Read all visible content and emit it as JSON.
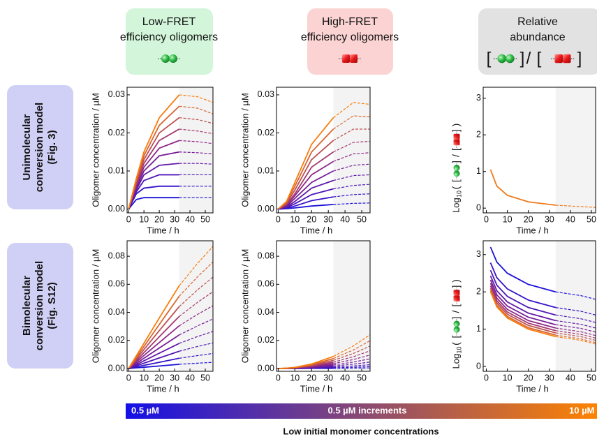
{
  "headers": [
    {
      "lines": [
        "Low-FRET",
        "efficiency oligomers"
      ]
    },
    {
      "lines": [
        "High-FRET",
        "efficiency oligomers"
      ]
    },
    {
      "lines": [
        "Relative",
        "abundance"
      ],
      "glyphs": [
        "[",
        "]",
        "/",
        "[",
        "]"
      ]
    }
  ],
  "rows": [
    {
      "lines": [
        "Unimolecular",
        "conversion model",
        "(Fig. 3)"
      ]
    },
    {
      "lines": [
        "Bimolecular",
        "conversion model",
        "(Fig. S12)"
      ]
    }
  ],
  "chart_data": [
    {
      "type": "line",
      "x_label": "Time / h",
      "y_label": "Oligomer concentration / µM",
      "shade_from": 33,
      "xlim": [
        -1,
        55
      ],
      "ylim": [
        -0.001,
        0.032
      ],
      "xticks": [
        0,
        10,
        20,
        30,
        40,
        50
      ],
      "yticks": [
        {
          "value": 0,
          "label": "0.00"
        },
        {
          "value": 0.01,
          "label": "0.01"
        },
        {
          "value": 0.02,
          "label": "0.02"
        },
        {
          "value": 0.03,
          "label": "0.03"
        }
      ],
      "x": [
        0,
        5,
        10,
        20,
        33,
        45,
        55
      ],
      "series": [
        {
          "color": "#1a10d8",
          "values": [
            0,
            0.0025,
            0.003,
            0.003,
            0.003,
            0.003,
            0.003
          ]
        },
        {
          "color": "#3512c8",
          "values": [
            0,
            0.004,
            0.0055,
            0.006,
            0.006,
            0.006,
            0.006
          ]
        },
        {
          "color": "#4d16b8",
          "values": [
            0,
            0.0045,
            0.0075,
            0.009,
            0.009,
            0.009,
            0.009
          ]
        },
        {
          "color": "#6319a8",
          "values": [
            0,
            0.005,
            0.009,
            0.0115,
            0.012,
            0.012,
            0.0118
          ]
        },
        {
          "color": "#781e98",
          "values": [
            0,
            0.0055,
            0.01,
            0.014,
            0.015,
            0.0148,
            0.0145
          ]
        },
        {
          "color": "#8e2888",
          "values": [
            0,
            0.006,
            0.011,
            0.016,
            0.018,
            0.0177,
            0.0172
          ]
        },
        {
          "color": "#a43a70",
          "values": [
            0,
            0.0065,
            0.012,
            0.018,
            0.021,
            0.0205,
            0.0198
          ]
        },
        {
          "color": "#bd5050",
          "values": [
            0,
            0.007,
            0.013,
            0.02,
            0.024,
            0.0235,
            0.0225
          ]
        },
        {
          "color": "#d96630",
          "values": [
            0,
            0.0075,
            0.014,
            0.022,
            0.027,
            0.0265,
            0.025
          ]
        },
        {
          "color": "#f87c0a",
          "values": [
            0,
            0.008,
            0.015,
            0.024,
            0.03,
            0.0295,
            0.028
          ]
        }
      ]
    },
    {
      "type": "line",
      "x_label": "Time / h",
      "y_label": "Oligomer concentration / µM",
      "shade_from": 33,
      "xlim": [
        -1,
        55
      ],
      "ylim": [
        -0.001,
        0.032
      ],
      "xticks": [
        0,
        10,
        20,
        30,
        40,
        50
      ],
      "yticks": [
        {
          "value": 0,
          "label": "0.00"
        },
        {
          "value": 0.01,
          "label": "0.01"
        },
        {
          "value": 0.02,
          "label": "0.02"
        },
        {
          "value": 0.03,
          "label": "0.03"
        }
      ],
      "x": [
        0,
        5,
        10,
        20,
        33,
        45,
        55
      ],
      "series": [
        {
          "color": "#1a10d8",
          "values": [
            0,
            0.0001,
            0.0003,
            0.0008,
            0.0012,
            0.0015,
            0.0016
          ]
        },
        {
          "color": "#3512c8",
          "values": [
            0,
            0.0002,
            0.0008,
            0.0022,
            0.0032,
            0.0038,
            0.004
          ]
        },
        {
          "color": "#4d16b8",
          "values": [
            0,
            0.0004,
            0.0014,
            0.0038,
            0.0053,
            0.0062,
            0.0065
          ]
        },
        {
          "color": "#6319a8",
          "values": [
            0,
            0.0006,
            0.002,
            0.0055,
            0.0075,
            0.0088,
            0.009
          ]
        },
        {
          "color": "#781e98",
          "values": [
            0,
            0.0008,
            0.0028,
            0.007,
            0.01,
            0.0115,
            0.0118
          ]
        },
        {
          "color": "#8e2888",
          "values": [
            0,
            0.001,
            0.0035,
            0.009,
            0.0125,
            0.0145,
            0.0148
          ]
        },
        {
          "color": "#a43a70",
          "values": [
            0,
            0.0012,
            0.004,
            0.011,
            0.015,
            0.0175,
            0.0178
          ]
        },
        {
          "color": "#bd5050",
          "values": [
            0,
            0.0015,
            0.005,
            0.013,
            0.018,
            0.021,
            0.021
          ]
        },
        {
          "color": "#d96630",
          "values": [
            0,
            0.0018,
            0.006,
            0.015,
            0.021,
            0.0245,
            0.0242
          ]
        },
        {
          "color": "#f87c0a",
          "values": [
            0,
            0.002,
            0.007,
            0.017,
            0.024,
            0.028,
            0.0275
          ]
        }
      ]
    },
    {
      "type": "line",
      "x_label": "Time / h",
      "y_label": "Log",
      "y_label_sub": "10",
      "y_label_glyphs": [
        "(",
        "[",
        "]",
        "/",
        "[",
        "]",
        ")"
      ],
      "shade_from": 33,
      "xlim": [
        -1.5,
        52
      ],
      "ylim": [
        -0.13,
        3.3
      ],
      "xticks": [
        0,
        10,
        20,
        30,
        40,
        50
      ],
      "yticks": [
        0,
        1,
        2,
        3
      ],
      "x": [
        2,
        5,
        10,
        20,
        33,
        45,
        52
      ],
      "series": [
        {
          "color": "#f07818",
          "values": [
            1.05,
            0.6,
            0.35,
            0.17,
            0.08,
            0.04,
            0.02
          ]
        }
      ]
    },
    {
      "type": "line",
      "x_label": "Time / h",
      "y_label": "Oligomer concentration / µM",
      "shade_from": 33,
      "xlim": [
        -1,
        55
      ],
      "ylim": [
        -0.002,
        0.091
      ],
      "xticks": [
        0,
        10,
        20,
        30,
        40,
        50
      ],
      "yticks": [
        {
          "value": 0,
          "label": "0.00"
        },
        {
          "value": 0.02,
          "label": "0.02"
        },
        {
          "value": 0.04,
          "label": "0.04"
        },
        {
          "value": 0.06,
          "label": "0.06"
        },
        {
          "value": 0.08,
          "label": "0.08"
        }
      ],
      "x": [
        0,
        5,
        10,
        20,
        33,
        45,
        55
      ],
      "series": [
        {
          "color": "#1a10d8",
          "values": [
            0,
            0.0005,
            0.0009,
            0.0018,
            0.003,
            0.0038,
            0.0044
          ]
        },
        {
          "color": "#3512c8",
          "values": [
            0,
            0.0011,
            0.0022,
            0.0044,
            0.0073,
            0.0092,
            0.0107
          ]
        },
        {
          "color": "#4d16b8",
          "values": [
            0,
            0.0019,
            0.0038,
            0.0075,
            0.0123,
            0.0157,
            0.0182
          ]
        },
        {
          "color": "#6319a8",
          "values": [
            0,
            0.0027,
            0.0055,
            0.0109,
            0.0179,
            0.0228,
            0.0264
          ]
        },
        {
          "color": "#781e98",
          "values": [
            0,
            0.0036,
            0.0073,
            0.0146,
            0.0239,
            0.0304,
            0.0353
          ]
        },
        {
          "color": "#8e2888",
          "values": [
            0,
            0.0046,
            0.0093,
            0.0185,
            0.0304,
            0.0386,
            0.0448
          ]
        },
        {
          "color": "#a43a70",
          "values": [
            0,
            0.0056,
            0.0113,
            0.0226,
            0.0371,
            0.0472,
            0.0547
          ]
        },
        {
          "color": "#bd5050",
          "values": [
            0,
            0.0067,
            0.0135,
            0.027,
            0.0441,
            0.0561,
            0.0651
          ]
        },
        {
          "color": "#d96630",
          "values": [
            0,
            0.0078,
            0.0157,
            0.0314,
            0.0515,
            0.0654,
            0.0759
          ]
        },
        {
          "color": "#f87c0a",
          "values": [
            0,
            0.009,
            0.018,
            0.036,
            0.059,
            0.075,
            0.087
          ]
        }
      ]
    },
    {
      "type": "line",
      "x_label": "Time / h",
      "y_label": "Oligomer concentration / µM",
      "shade_from": 33,
      "xlim": [
        -1,
        55
      ],
      "ylim": [
        -0.002,
        0.091
      ],
      "xticks": [
        0,
        10,
        20,
        30,
        40,
        50
      ],
      "yticks": [
        {
          "value": 0,
          "label": "0.00"
        },
        {
          "value": 0.02,
          "label": "0.02"
        },
        {
          "value": 0.04,
          "label": "0.04"
        },
        {
          "value": 0.06,
          "label": "0.06"
        },
        {
          "value": 0.08,
          "label": "0.08"
        }
      ],
      "x": [
        0,
        5,
        10,
        20,
        33,
        45,
        55
      ],
      "series": [
        {
          "color": "#1a10d8",
          "values": [
            0,
            0,
            0,
            0.0001,
            0.0001,
            0.0003,
            0.0004
          ]
        },
        {
          "color": "#3512c8",
          "values": [
            0,
            0,
            0,
            0.0002,
            0.0005,
            0.0009,
            0.0013
          ]
        },
        {
          "color": "#4d16b8",
          "values": [
            0,
            0,
            0.0001,
            0.0004,
            0.001,
            0.0018,
            0.0027
          ]
        },
        {
          "color": "#6319a8",
          "values": [
            0,
            0,
            0.0002,
            0.0006,
            0.0017,
            0.0031,
            0.0046
          ]
        },
        {
          "color": "#781e98",
          "values": [
            0,
            0.0001,
            0.0002,
            0.0009,
            0.0025,
            0.0046,
            0.0069
          ]
        },
        {
          "color": "#8e2888",
          "values": [
            0,
            0.0001,
            0.0003,
            0.0013,
            0.0035,
            0.0064,
            0.0096
          ]
        },
        {
          "color": "#a43a70",
          "values": [
            0,
            0.0001,
            0.0004,
            0.0017,
            0.0045,
            0.0084,
            0.0126
          ]
        },
        {
          "color": "#bd5050",
          "values": [
            0,
            0.0001,
            0.0005,
            0.0021,
            0.0058,
            0.0107,
            0.016
          ]
        },
        {
          "color": "#d96630",
          "values": [
            0,
            0.0002,
            0.0007,
            0.0026,
            0.0071,
            0.0132,
            0.0198
          ]
        },
        {
          "color": "#f87c0a",
          "values": [
            0,
            0.0002,
            0.0008,
            0.0032,
            0.0086,
            0.0161,
            0.024
          ]
        }
      ]
    },
    {
      "type": "line",
      "x_label": "Time / h",
      "y_label": "Log",
      "y_label_sub": "10",
      "y_label_glyphs": [
        "(",
        "[",
        "]",
        "/",
        "[",
        "]",
        ")"
      ],
      "shade_from": 33,
      "xlim": [
        -1.5,
        52
      ],
      "ylim": [
        -0.13,
        3.37
      ],
      "xticks": [
        0,
        10,
        20,
        30,
        40,
        50
      ],
      "yticks": [
        0,
        1,
        2,
        3
      ],
      "x": [
        2,
        5,
        10,
        20,
        33,
        45,
        52
      ],
      "series": [
        {
          "color": "#1a10d8",
          "values": [
            3.2,
            2.8,
            2.5,
            2.2,
            2.0,
            1.9,
            1.8
          ]
        },
        {
          "color": "#3512c8",
          "values": [
            2.78,
            2.38,
            2.08,
            1.78,
            1.58,
            1.48,
            1.38
          ]
        },
        {
          "color": "#4d16b8",
          "values": [
            2.58,
            2.18,
            1.88,
            1.58,
            1.38,
            1.28,
            1.18
          ]
        },
        {
          "color": "#6319a8",
          "values": [
            2.43,
            2.03,
            1.73,
            1.43,
            1.23,
            1.13,
            1.03
          ]
        },
        {
          "color": "#781e98",
          "values": [
            2.32,
            1.92,
            1.62,
            1.32,
            1.12,
            1.02,
            0.92
          ]
        },
        {
          "color": "#8e2888",
          "values": [
            2.23,
            1.83,
            1.53,
            1.23,
            1.03,
            0.93,
            0.83
          ]
        },
        {
          "color": "#a43a70",
          "values": [
            2.16,
            1.76,
            1.46,
            1.16,
            0.96,
            0.86,
            0.76
          ]
        },
        {
          "color": "#bd5050",
          "values": [
            2.1,
            1.7,
            1.4,
            1.1,
            0.9,
            0.8,
            0.7
          ]
        },
        {
          "color": "#d96630",
          "values": [
            2.04,
            1.64,
            1.34,
            1.04,
            0.84,
            0.74,
            0.64
          ]
        },
        {
          "color": "#f87c0a",
          "values": [
            2.0,
            1.6,
            1.3,
            1.0,
            0.8,
            0.7,
            0.6
          ]
        }
      ]
    }
  ],
  "colorbar": {
    "colors": [
      "#1410e6",
      "#ff8400"
    ],
    "left": "0.5 µM",
    "middle": "0.5 µM increments",
    "right": "10 µM",
    "caption": "Low initial monomer concentrations"
  }
}
